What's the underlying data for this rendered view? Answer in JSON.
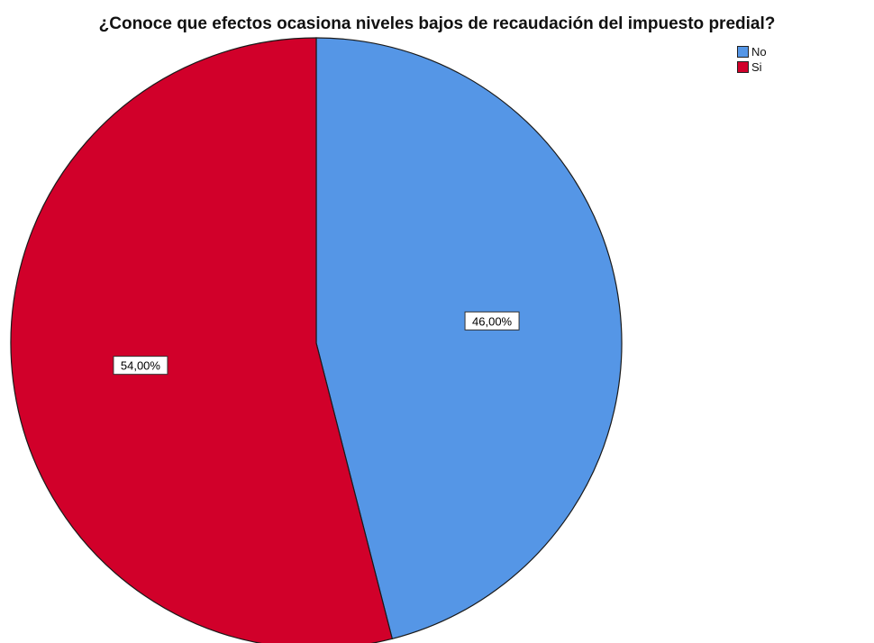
{
  "chart_data": {
    "type": "pie",
    "title": "¿Conoce que efectos ocasiona niveles bajos de recaudación del impuesto predial?",
    "categories": [
      "No",
      "Si"
    ],
    "values": [
      46.0,
      54.0
    ],
    "data_labels": [
      "46,00%",
      "54,00%"
    ],
    "colors": [
      "#5596E6",
      "#D1002A"
    ],
    "start_angle": "12 o'clock",
    "direction": "clockwise",
    "legend": {
      "placement": "top-right",
      "entries": [
        "No",
        "Si"
      ]
    }
  }
}
